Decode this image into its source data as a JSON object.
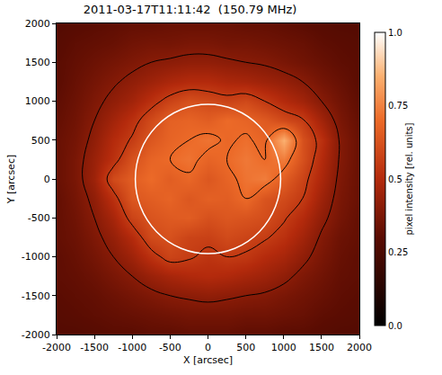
{
  "chart_data": {
    "type": "heatmap",
    "title": "2011-03-17T11:11:42  (150.79 MHz)",
    "x_label": "X [arcsec]",
    "y_label": "Y [arcsec]",
    "x": [
      -2000,
      -1750,
      -1500,
      -1250,
      -1000,
      -750,
      -500,
      -250,
      0,
      250,
      500,
      750,
      1000,
      1250,
      1500,
      1750,
      2000
    ],
    "y": [
      -2000,
      -1750,
      -1500,
      -1250,
      -1000,
      -750,
      -500,
      -250,
      0,
      250,
      500,
      750,
      1000,
      1250,
      1500,
      1750,
      2000
    ],
    "z": [
      [
        0.28,
        0.28,
        0.29,
        0.3,
        0.3,
        0.31,
        0.31,
        0.32,
        0.32,
        0.32,
        0.31,
        0.31,
        0.3,
        0.3,
        0.29,
        0.28,
        0.28
      ],
      [
        0.29,
        0.3,
        0.31,
        0.32,
        0.33,
        0.34,
        0.35,
        0.36,
        0.36,
        0.36,
        0.35,
        0.35,
        0.34,
        0.33,
        0.31,
        0.3,
        0.29
      ],
      [
        0.3,
        0.31,
        0.32,
        0.34,
        0.36,
        0.38,
        0.4,
        0.41,
        0.42,
        0.41,
        0.4,
        0.39,
        0.37,
        0.35,
        0.33,
        0.31,
        0.3
      ],
      [
        0.31,
        0.32,
        0.34,
        0.37,
        0.4,
        0.44,
        0.47,
        0.49,
        0.5,
        0.49,
        0.47,
        0.45,
        0.42,
        0.38,
        0.35,
        0.32,
        0.31
      ],
      [
        0.31,
        0.33,
        0.36,
        0.4,
        0.45,
        0.52,
        0.58,
        0.56,
        0.53,
        0.55,
        0.54,
        0.5,
        0.47,
        0.42,
        0.37,
        0.33,
        0.31
      ],
      [
        0.32,
        0.34,
        0.38,
        0.43,
        0.5,
        0.6,
        0.62,
        0.58,
        0.57,
        0.6,
        0.58,
        0.56,
        0.52,
        0.46,
        0.39,
        0.34,
        0.32
      ],
      [
        0.32,
        0.35,
        0.4,
        0.47,
        0.58,
        0.63,
        0.65,
        0.66,
        0.62,
        0.64,
        0.63,
        0.61,
        0.56,
        0.5,
        0.42,
        0.36,
        0.32
      ],
      [
        0.32,
        0.36,
        0.42,
        0.52,
        0.64,
        0.66,
        0.68,
        0.64,
        0.67,
        0.66,
        0.7,
        0.63,
        0.6,
        0.55,
        0.45,
        0.37,
        0.33
      ],
      [
        0.33,
        0.37,
        0.45,
        0.6,
        0.66,
        0.7,
        0.66,
        0.69,
        0.64,
        0.68,
        0.72,
        0.74,
        0.66,
        0.58,
        0.48,
        0.38,
        0.33
      ],
      [
        0.33,
        0.37,
        0.44,
        0.52,
        0.62,
        0.68,
        0.7,
        0.72,
        0.68,
        0.7,
        0.73,
        0.7,
        0.74,
        0.62,
        0.5,
        0.39,
        0.33
      ],
      [
        0.33,
        0.36,
        0.42,
        0.5,
        0.56,
        0.64,
        0.68,
        0.7,
        0.72,
        0.69,
        0.71,
        0.68,
        0.85,
        0.62,
        0.52,
        0.39,
        0.33
      ],
      [
        0.32,
        0.35,
        0.4,
        0.46,
        0.52,
        0.6,
        0.67,
        0.68,
        0.66,
        0.7,
        0.68,
        0.65,
        0.6,
        0.56,
        0.46,
        0.37,
        0.32
      ],
      [
        0.31,
        0.34,
        0.38,
        0.42,
        0.46,
        0.52,
        0.58,
        0.62,
        0.6,
        0.58,
        0.6,
        0.55,
        0.5,
        0.46,
        0.4,
        0.35,
        0.31
      ],
      [
        0.3,
        0.33,
        0.36,
        0.39,
        0.42,
        0.45,
        0.48,
        0.5,
        0.5,
        0.48,
        0.47,
        0.45,
        0.43,
        0.4,
        0.36,
        0.33,
        0.3
      ],
      [
        0.3,
        0.32,
        0.34,
        0.36,
        0.38,
        0.4,
        0.41,
        0.42,
        0.42,
        0.41,
        0.4,
        0.39,
        0.37,
        0.35,
        0.33,
        0.31,
        0.3
      ],
      [
        0.29,
        0.31,
        0.32,
        0.33,
        0.35,
        0.36,
        0.36,
        0.37,
        0.37,
        0.36,
        0.36,
        0.35,
        0.34,
        0.33,
        0.31,
        0.3,
        0.29
      ],
      [
        0.28,
        0.29,
        0.3,
        0.31,
        0.32,
        0.32,
        0.33,
        0.33,
        0.33,
        0.33,
        0.32,
        0.32,
        0.31,
        0.3,
        0.29,
        0.28,
        0.28
      ]
    ],
    "xlim": [
      -2000,
      2000
    ],
    "ylim": [
      -2000,
      2000
    ],
    "xticks": [
      -2000,
      -1500,
      -1000,
      -500,
      0,
      500,
      1000,
      1500,
      2000
    ],
    "yticks": [
      -2000,
      -1500,
      -1000,
      -500,
      0,
      500,
      1000,
      1500,
      2000
    ],
    "colorbar": {
      "title": "pixel intensity [rel. units]",
      "range": [
        0,
        1
      ],
      "ticks": [
        {
          "value": 0,
          "label": "0.0"
        },
        0.25,
        0.5,
        0.75,
        {
          "value": 1,
          "label": "1.0"
        }
      ]
    },
    "contour_levels": [
      0.4,
      0.55,
      0.7
    ],
    "disk_radius": 960
  }
}
